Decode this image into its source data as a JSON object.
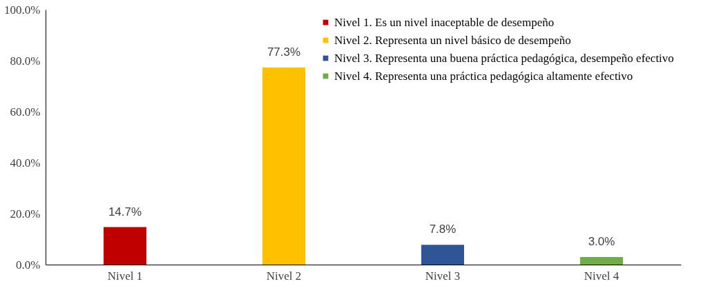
{
  "chart_data": {
    "type": "bar",
    "categories": [
      "Nivel 1",
      "Nivel 2",
      "Nivel 3",
      "Nivel 4"
    ],
    "series": [
      {
        "name": "Nivel 1. Es un nivel   inaceptable de desempeño",
        "color": "#c00000",
        "values": [
          14.7,
          null,
          null,
          null
        ],
        "value_labels": [
          "14.7%",
          null,
          null,
          null
        ]
      },
      {
        "name": "Nivel 2. Representa un nivel básico de desempeño",
        "color": "#ffc000",
        "values": [
          null,
          77.3,
          null,
          null
        ],
        "value_labels": [
          null,
          "77.3%",
          null,
          null
        ]
      },
      {
        "name": "Nivel 3. Representa una buena práctica pedagógica, desempeño efectivo",
        "color": "#2f5597",
        "values": [
          null,
          null,
          7.8,
          null
        ],
        "value_labels": [
          null,
          null,
          "7.8%",
          null
        ]
      },
      {
        "name": "Nivel 4. Representa una práctica pedagógica altamente efectivo",
        "color": "#70ad47",
        "values": [
          null,
          null,
          null,
          3.0
        ],
        "value_labels": [
          null,
          null,
          null,
          "3.0%"
        ]
      }
    ],
    "ylim": [
      0,
      100
    ],
    "yticks": [
      {
        "value": 0,
        "label": "0.0%"
      },
      {
        "value": 20,
        "label": "20.0%"
      },
      {
        "value": 40,
        "label": "40.0%"
      },
      {
        "value": 60,
        "label": "60.0%"
      },
      {
        "value": 80,
        "label": "80.0%"
      },
      {
        "value": 100,
        "label": "100.0%"
      }
    ],
    "grid": false,
    "legend": "top right"
  }
}
